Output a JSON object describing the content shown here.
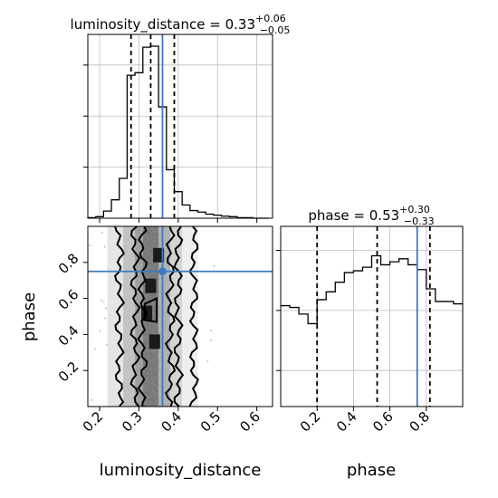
{
  "chart_data": {
    "type": "corner",
    "parameters": [
      "luminosity_distance",
      "phase"
    ],
    "truth_color": "#3b7bbf",
    "line_color": "#000000",
    "grid": true,
    "luminosity_distance": {
      "title": {
        "prefix": "luminosity_distance = ",
        "value": "0.33",
        "plus": "+0.06",
        "minus": "−0.05"
      },
      "xlabel": "luminosity_distance",
      "xlim": [
        0.17,
        0.64
      ],
      "xticks": [
        "0.2",
        "0.3",
        "0.4",
        "0.5",
        "0.6"
      ],
      "xtick_values": [
        0.2,
        0.3,
        0.4,
        0.5,
        0.6
      ],
      "quantiles": [
        0.28,
        0.33,
        0.39
      ],
      "truth": 0.36,
      "hist": {
        "bin_edges": [
          0.17,
          0.19,
          0.21,
          0.23,
          0.25,
          0.27,
          0.29,
          0.31,
          0.33,
          0.35,
          0.37,
          0.39,
          0.41,
          0.43,
          0.45,
          0.47,
          0.49,
          0.51,
          0.53,
          0.55,
          0.57,
          0.59,
          0.61,
          0.63
        ],
        "counts": [
          1,
          3,
          14,
          36,
          78,
          280,
          285,
          335,
          337,
          218,
          95,
          52,
          26,
          15,
          12,
          8,
          6,
          4,
          3,
          1,
          1,
          0,
          0
        ]
      }
    },
    "phase": {
      "title": {
        "prefix": "phase = ",
        "value": "0.53",
        "plus": "+0.30",
        "minus": "−0.33"
      },
      "xlabel": "phase",
      "ylabel": "phase",
      "xlim": [
        0.0,
        1.0
      ],
      "ylim": [
        0.0,
        1.0
      ],
      "xticks": [
        "0.2",
        "0.4",
        "0.6",
        "0.8"
      ],
      "xtick_values": [
        0.2,
        0.4,
        0.6,
        0.8
      ],
      "yticks": [
        "0.2",
        "0.4",
        "0.6",
        "0.8"
      ],
      "ytick_values": [
        0.2,
        0.4,
        0.6,
        0.8
      ],
      "quantiles": [
        0.2,
        0.53,
        0.82
      ],
      "truth": 0.75,
      "hist": {
        "bin_edges": [
          0.0,
          0.05,
          0.1,
          0.15,
          0.2,
          0.25,
          0.3,
          0.35,
          0.4,
          0.45,
          0.5,
          0.55,
          0.6,
          0.65,
          0.7,
          0.75,
          0.8,
          0.85,
          0.9,
          0.95,
          1.0
        ],
        "counts": [
          168,
          165,
          154,
          138,
          178,
          191,
          207,
          223,
          226,
          232,
          251,
          236,
          241,
          246,
          236,
          228,
          196,
          175,
          175,
          171
        ]
      }
    },
    "joint": {
      "x": "luminosity_distance",
      "y": "phase",
      "truth": [
        0.36,
        0.75
      ],
      "density_columns": [
        {
          "x0": 0.22,
          "x1": 0.26,
          "level": 0.15
        },
        {
          "x0": 0.26,
          "x1": 0.29,
          "level": 0.35
        },
        {
          "x0": 0.29,
          "x1": 0.31,
          "level": 0.55
        },
        {
          "x0": 0.31,
          "x1": 0.35,
          "level": 0.75
        },
        {
          "x0": 0.35,
          "x1": 0.38,
          "level": 0.45
        },
        {
          "x0": 0.38,
          "x1": 0.41,
          "level": 0.25
        },
        {
          "x0": 0.41,
          "x1": 0.45,
          "level": 0.1
        }
      ],
      "dark_blocks": [
        {
          "x": 0.32,
          "y": 0.52
        },
        {
          "x": 0.34,
          "y": 0.36
        },
        {
          "x": 0.33,
          "y": 0.67
        },
        {
          "x": 0.35,
          "y": 0.84
        }
      ]
    }
  }
}
